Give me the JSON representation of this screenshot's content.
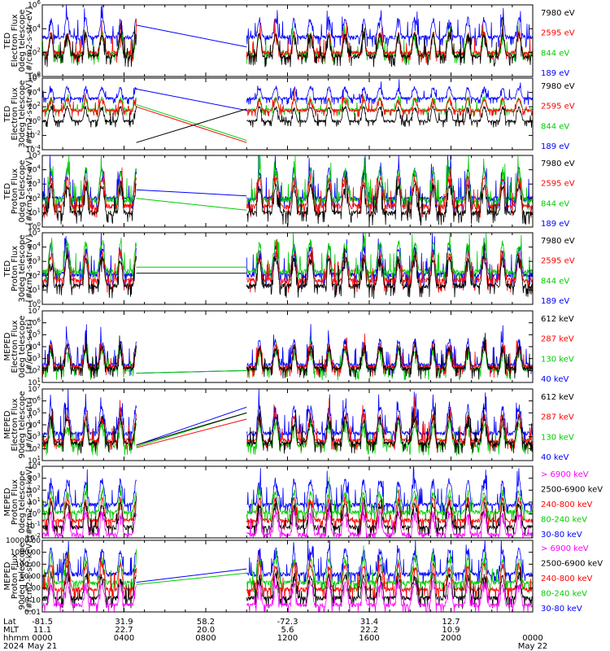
{
  "chart_data": [
    {
      "type": "line",
      "ylabel": [
        "TED",
        "Electron Flux",
        "0deg telescope",
        "[#/cm2-s-str-eV]"
      ],
      "yscale": "log",
      "ylim": [
        1,
        1000000
      ],
      "ytick_labels": [
        "10^0",
        "10^2",
        "10^4",
        "10^6"
      ],
      "series": [
        {
          "name": "7980 eV",
          "color": "#000000",
          "base": 50,
          "spread": 3,
          "spikes": 0.8
        },
        {
          "name": "2595 eV",
          "color": "#ff0000",
          "base": 100,
          "spread": 2,
          "spikes": 0.6
        },
        {
          "name": "844 eV",
          "color": "#00cc00",
          "base": 80,
          "spread": 2,
          "spikes": 0.5
        },
        {
          "name": "189 eV",
          "color": "#0000ff",
          "base": 2000,
          "spread": 1.5,
          "spikes": 0.8
        }
      ],
      "gap_lines": [
        {
          "color": "#0000ff",
          "from": 20000,
          "to": 300
        }
      ]
    },
    {
      "type": "line",
      "ylabel": [
        "TED",
        "Electron Flux",
        "30deg telescope",
        "[#/cm2-s-str-eV]"
      ],
      "yscale": "log",
      "ylim": [
        0.0001,
        1000000
      ],
      "ytick_labels": [
        "10^-4",
        "10^-2",
        "10^0",
        "10^2",
        "10^4",
        "10^6"
      ],
      "series": [
        {
          "name": "7980 eV",
          "color": "#000000",
          "base": 1,
          "spread": 4,
          "spikes": 0.5
        },
        {
          "name": "2595 eV",
          "color": "#ff0000",
          "base": 30,
          "spread": 2,
          "spikes": 0.5
        },
        {
          "name": "844 eV",
          "color": "#00cc00",
          "base": 40,
          "spread": 2,
          "spikes": 0.4
        },
        {
          "name": "189 eV",
          "color": "#0000ff",
          "base": 1500,
          "spread": 1.5,
          "spikes": 0.6
        }
      ],
      "gap_lines": [
        {
          "color": "#0000ff",
          "from": 30000,
          "to": 30
        },
        {
          "color": "#ff0000",
          "from": 100,
          "to": 0.001
        },
        {
          "color": "#00cc00",
          "from": 200,
          "to": 0.002
        },
        {
          "color": "#000000",
          "from": 0.001,
          "to": 50
        }
      ]
    },
    {
      "type": "line",
      "ylabel": [
        "TED",
        "Proton Flux",
        "0deg telescope",
        "[#/cm2-s-str-eV]"
      ],
      "yscale": "log",
      "ylim": [
        1,
        100000
      ],
      "ytick_labels": [
        "10^0",
        "10^1",
        "10^2",
        "10^3",
        "10^4",
        "10^5"
      ],
      "series": [
        {
          "name": "7980 eV",
          "color": "#000000",
          "base": 10,
          "spread": 4,
          "spikes": 0.6
        },
        {
          "name": "2595 eV",
          "color": "#ff0000",
          "base": 30,
          "spread": 4,
          "spikes": 0.6
        },
        {
          "name": "844 eV",
          "color": "#00cc00",
          "base": 80,
          "spread": 6,
          "spikes": 1.0
        },
        {
          "name": "189 eV",
          "color": "#0000ff",
          "base": 100,
          "spread": 5,
          "spikes": 0.9
        }
      ],
      "gap_lines": [
        {
          "color": "#0000ff",
          "from": 400,
          "to": 150
        },
        {
          "color": "#00cc00",
          "from": 100,
          "to": 15
        }
      ]
    },
    {
      "type": "line",
      "ylabel": [
        "TED",
        "Proton Flux",
        "30deg telescope",
        "[#/cm2-s-str-eV]"
      ],
      "yscale": "log",
      "ylim": [
        1,
        100000
      ],
      "ytick_labels": [
        "10^0",
        "10^1",
        "10^2",
        "10^3",
        "10^4",
        "10^5"
      ],
      "series": [
        {
          "name": "7980 eV",
          "color": "#000000",
          "base": 20,
          "spread": 4,
          "spikes": 0.6
        },
        {
          "name": "2595 eV",
          "color": "#ff0000",
          "base": 50,
          "spread": 3,
          "spikes": 0.5
        },
        {
          "name": "844 eV",
          "color": "#00cc00",
          "base": 200,
          "spread": 5,
          "spikes": 0.8
        },
        {
          "name": "189 eV",
          "color": "#0000ff",
          "base": 120,
          "spread": 4,
          "spikes": 0.8
        }
      ],
      "gap_lines": [
        {
          "color": "#00cc00",
          "from": 400,
          "to": 400
        },
        {
          "color": "#000000",
          "from": 150,
          "to": 150
        }
      ]
    },
    {
      "type": "line",
      "ylabel": [
        "MEPED",
        "Electron Flux",
        "0deg telescope",
        "[#/cm2-s-str]"
      ],
      "yscale": "log",
      "ylim": [
        10,
        10000000
      ],
      "ytick_labels": [
        "10^1",
        "10^2",
        "10^3",
        "10^4",
        "10^5",
        "10^6",
        "10^7"
      ],
      "series": [
        {
          "name": "612 keV",
          "color": "#000000",
          "base": 150,
          "spread": 3,
          "spikes": 0.5
        },
        {
          "name": "287 keV",
          "color": "#ff0000",
          "base": 200,
          "spread": 3,
          "spikes": 0.6
        },
        {
          "name": "130 keV",
          "color": "#00cc00",
          "base": 120,
          "spread": 2,
          "spikes": 0.4
        },
        {
          "name": "40 keV",
          "color": "#0000ff",
          "base": 300,
          "spread": 5,
          "spikes": 1.0
        }
      ],
      "gap_lines": [
        {
          "color": "#0000ff",
          "from": 60,
          "to": 100
        },
        {
          "color": "#00cc00",
          "from": 60,
          "to": 100
        }
      ]
    },
    {
      "type": "line",
      "ylabel": [
        "MEPED",
        "Electron Flux",
        "90deg telescope",
        "[#/cm2-s-str]"
      ],
      "yscale": "log",
      "ylim": [
        10,
        10000000
      ],
      "ytick_labels": [
        "10^1",
        "10^2",
        "10^3",
        "10^4",
        "10^5",
        "10^6",
        "10^7"
      ],
      "series": [
        {
          "name": "612 keV",
          "color": "#000000",
          "base": 300,
          "spread": 6,
          "spikes": 0.8
        },
        {
          "name": "287 keV",
          "color": "#ff0000",
          "base": 500,
          "spread": 6,
          "spikes": 0.8
        },
        {
          "name": "130 keV",
          "color": "#00cc00",
          "base": 200,
          "spread": 3,
          "spikes": 0.4
        },
        {
          "name": "40 keV",
          "color": "#0000ff",
          "base": 2000,
          "spread": 7,
          "spikes": 1.0
        }
      ],
      "gap_lines": [
        {
          "color": "#0000ff",
          "from": 200,
          "to": 300000
        },
        {
          "color": "#00cc00",
          "from": 150,
          "to": 100000
        },
        {
          "color": "#ff0000",
          "from": 120,
          "to": 30000
        },
        {
          "color": "#000000",
          "from": 200,
          "to": 100000
        }
      ]
    },
    {
      "type": "line",
      "ylabel": [
        "MEPED",
        "Proton Flux",
        "0deg telescope",
        "[#/cm2-s-str-keV]"
      ],
      "yscale": "log",
      "ylim": [
        0.01,
        10000
      ],
      "ytick_labels": [
        "10^-2",
        "10^-1",
        "10^0",
        "10^1",
        "10^2",
        "10^3",
        "10^4"
      ],
      "series": [
        {
          "name": "> 6900 keV",
          "color": "#ff00ff",
          "base": 0.02,
          "spread": 3,
          "spikes": 0.4
        },
        {
          "name": "2500-6900 keV",
          "color": "#000000",
          "base": 0.08,
          "spread": 4,
          "spikes": 0.4
        },
        {
          "name": "240-800 keV",
          "color": "#ff0000",
          "base": 0.3,
          "spread": 3,
          "spikes": 0.4
        },
        {
          "name": "80-240 keV",
          "color": "#00cc00",
          "base": 1.5,
          "spread": 2,
          "spikes": 0.4
        },
        {
          "name": "30-80 keV",
          "color": "#0000ff",
          "base": 6,
          "spread": 5,
          "spikes": 1.0
        }
      ],
      "gap_lines": []
    },
    {
      "type": "line",
      "ylabel": [
        "MEPED",
        "Proton Flux",
        "90deg telescope",
        "[#/cm2-s-str-keV]"
      ],
      "yscale": "log",
      "ylim": [
        0.01,
        10000
      ],
      "ytick_labels": [
        "0.01",
        "0.10",
        "1.00",
        "10.00",
        "100.00",
        "1000.00",
        "10000.00"
      ],
      "series": [
        {
          "name": "> 6900 keV",
          "color": "#ff00ff",
          "base": 0.04,
          "spread": 3,
          "spikes": 0.4
        },
        {
          "name": "2500-6900 keV",
          "color": "#000000",
          "base": 0.15,
          "spread": 4,
          "spikes": 0.5
        },
        {
          "name": "240-800 keV",
          "color": "#ff0000",
          "base": 0.8,
          "spread": 5,
          "spikes": 0.6
        },
        {
          "name": "80-240 keV",
          "color": "#00cc00",
          "base": 3,
          "spread": 4,
          "spikes": 0.5
        },
        {
          "name": "30-80 keV",
          "color": "#0000ff",
          "base": 15,
          "spread": 5,
          "spikes": 1.0
        }
      ],
      "gap_lines": [
        {
          "color": "#0000ff",
          "from": 3,
          "to": 40
        },
        {
          "color": "#00cc00",
          "from": 2,
          "to": 18
        }
      ]
    }
  ],
  "x_axis": {
    "rows": [
      "Lat",
      "MLT",
      "hhmm",
      "2024"
    ],
    "ticks": [
      {
        "lat": "-81.5",
        "mlt": "11.1",
        "hhmm": "0000",
        "date": "May 21"
      },
      {
        "lat": "31.9",
        "mlt": "22.7",
        "hhmm": "0400",
        "date": ""
      },
      {
        "lat": "58.2",
        "mlt": "20.0",
        "hhmm": "0800",
        "date": ""
      },
      {
        "lat": "-72.3",
        "mlt": "5.6",
        "hhmm": "1200",
        "date": ""
      },
      {
        "lat": "31.4",
        "mlt": "22.2",
        "hhmm": "1600",
        "date": ""
      },
      {
        "lat": "12.7",
        "mlt": "10.9",
        "hhmm": "2000",
        "date": ""
      },
      {
        "lat": "",
        "mlt": "",
        "hhmm": "0000",
        "date": "May 22"
      }
    ],
    "data_gap": [
      "0500",
      "1000"
    ]
  }
}
